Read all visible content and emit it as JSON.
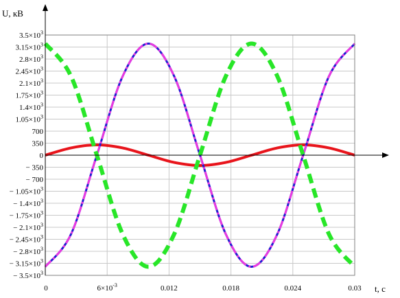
{
  "chart_data": {
    "type": "line",
    "xlabel": "t, c",
    "ylabel": "U, кВ",
    "xlim": [
      0,
      0.03
    ],
    "ylim": [
      -3500,
      3500
    ],
    "grid": true,
    "x_ticks": [
      {
        "value": 0,
        "label": "0"
      },
      {
        "value": 0.006,
        "label": "6×10",
        "exp": "-3"
      },
      {
        "value": 0.012,
        "label": "0.012"
      },
      {
        "value": 0.018,
        "label": "0.018"
      },
      {
        "value": 0.024,
        "label": "0.024"
      },
      {
        "value": 0.03,
        "label": "0.03"
      }
    ],
    "y_ticks": [
      {
        "value": 3500,
        "label": "3.5×10",
        "exp": "3"
      },
      {
        "value": 3150,
        "label": "3.15×10",
        "exp": "3"
      },
      {
        "value": 2800,
        "label": "2.8×10",
        "exp": "3"
      },
      {
        "value": 2450,
        "label": "2.45×10",
        "exp": "3"
      },
      {
        "value": 2100,
        "label": "2.1×10",
        "exp": "3"
      },
      {
        "value": 1750,
        "label": "1.75×10",
        "exp": "3"
      },
      {
        "value": 1400,
        "label": "1.4×10",
        "exp": "3"
      },
      {
        "value": 1050,
        "label": "1.05×10",
        "exp": "3"
      },
      {
        "value": 700,
        "label": "700"
      },
      {
        "value": 350,
        "label": "350"
      },
      {
        "value": 0,
        "label": "0"
      },
      {
        "value": -350,
        "label": "− 350"
      },
      {
        "value": -700,
        "label": "− 700"
      },
      {
        "value": -1050,
        "label": "− 1.05×10",
        "exp": "3"
      },
      {
        "value": -1400,
        "label": "− 1.4×10",
        "exp": "3"
      },
      {
        "value": -1750,
        "label": "− 1.75×10",
        "exp": "3"
      },
      {
        "value": -2100,
        "label": "− 2.1×10",
        "exp": "3"
      },
      {
        "value": -2450,
        "label": "− 2.45×10",
        "exp": "3"
      },
      {
        "value": -2800,
        "label": "− 2.8×10",
        "exp": "3"
      },
      {
        "value": -3150,
        "label": "− 3.15×10",
        "exp": "3"
      },
      {
        "value": -3500,
        "label": "− 3.5×10",
        "exp": "3"
      }
    ],
    "series": [
      {
        "color": "#e8141b",
        "style": "solid",
        "x": [
          0,
          0.0025,
          0.005,
          0.0075,
          0.01,
          0.0125,
          0.015,
          0.0175,
          0.02,
          0.0225,
          0.025,
          0.0275,
          0.03
        ],
        "y": [
          0,
          212,
          300,
          212,
          0,
          -212,
          -300,
          -212,
          0,
          212,
          300,
          212,
          0
        ]
      },
      {
        "color": "#1f1fd0",
        "style": "solid",
        "x": [
          0,
          0.0025,
          0.005,
          0.0075,
          0.01,
          0.0125,
          0.015,
          0.0175,
          0.02,
          0.0225,
          0.025,
          0.0275,
          0.03
        ],
        "y": [
          -3250,
          -2298,
          0,
          2298,
          3250,
          2298,
          0,
          -2298,
          -3250,
          -2298,
          0,
          2298,
          3250
        ]
      },
      {
        "color": "#e83ae0",
        "style": "dashed",
        "x": [
          0,
          0.0025,
          0.005,
          0.0075,
          0.01,
          0.0125,
          0.015,
          0.0175,
          0.02,
          0.0225,
          0.025,
          0.0275,
          0.03
        ],
        "y": [
          -3250,
          -2298,
          0,
          2298,
          3250,
          2298,
          0,
          -2298,
          -3250,
          -2298,
          0,
          2298,
          3250
        ]
      },
      {
        "color": "#28e628",
        "style": "dashed",
        "x": [
          0,
          0.0025,
          0.005,
          0.0075,
          0.01,
          0.0125,
          0.015,
          0.0175,
          0.02,
          0.0225,
          0.025,
          0.0275,
          0.03
        ],
        "y": [
          3250,
          2298,
          0,
          -2298,
          -3250,
          -2298,
          0,
          2298,
          3250,
          2298,
          0,
          -2298,
          -3250
        ]
      }
    ]
  }
}
